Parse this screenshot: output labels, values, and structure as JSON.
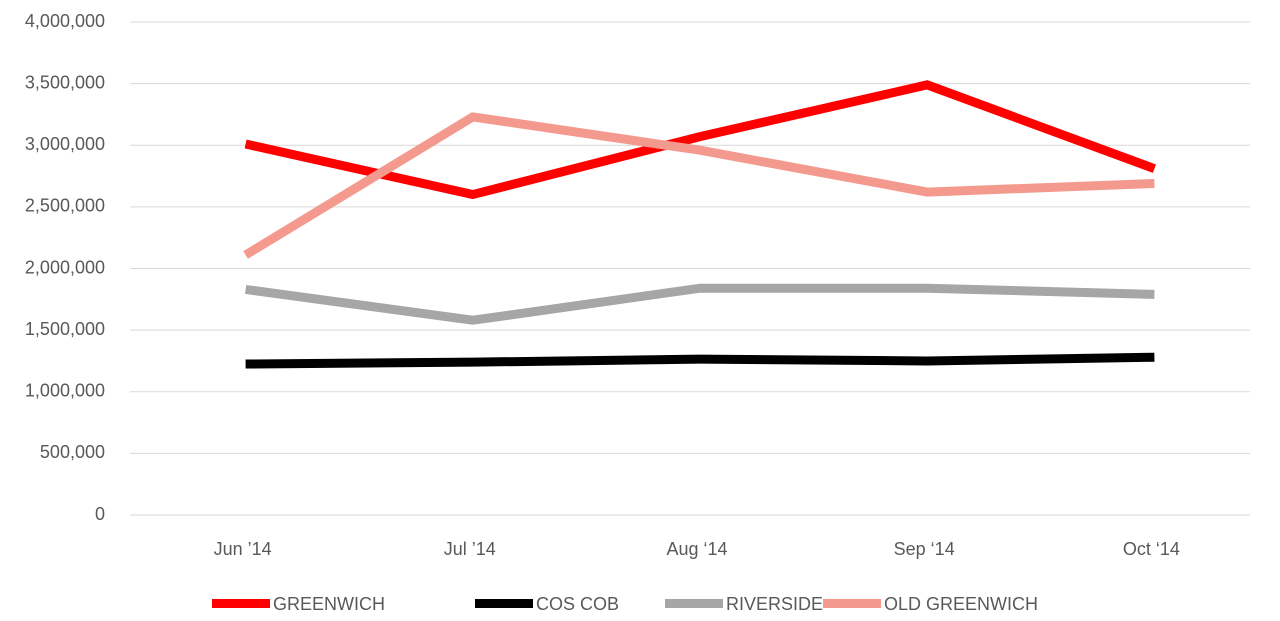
{
  "chart_data": {
    "type": "line",
    "categories": [
      "Jun ’14",
      "Jul ’14",
      "Aug ‘14",
      "Sep ‘14",
      "Oct ‘14"
    ],
    "series": [
      {
        "name": "GREENWICH",
        "color": "#ff0000",
        "values": [
          3010000,
          2600000,
          3070000,
          3490000,
          2810000
        ]
      },
      {
        "name": "COS COB",
        "color": "#000000",
        "values": [
          1225000,
          1240000,
          1265000,
          1250000,
          1280000
        ]
      },
      {
        "name": "RIVERSIDE",
        "color": "#a6a6a6",
        "values": [
          1830000,
          1580000,
          1840000,
          1840000,
          1790000
        ]
      },
      {
        "name": "OLD GREENWICH",
        "color": "#f4998d",
        "values": [
          2110000,
          3230000,
          2960000,
          2620000,
          2690000
        ]
      }
    ],
    "ylim": [
      0,
      4000000
    ],
    "yticks": [
      0,
      {
        "value": 500000,
        "label": "500,000"
      },
      {
        "value": 1000000,
        "label": "1,000,000"
      },
      {
        "value": 1500000,
        "label": "1,500,000"
      },
      {
        "value": 2000000,
        "label": "2,000,000"
      },
      {
        "value": 2500000,
        "label": "2,500,000"
      },
      {
        "value": 3000000,
        "label": "3,000,000"
      },
      {
        "value": 3500000,
        "label": "3,500,000"
      },
      {
        "value": 4000000,
        "label": "4,000,000"
      }
    ],
    "grid": true,
    "legend": "bottom"
  }
}
